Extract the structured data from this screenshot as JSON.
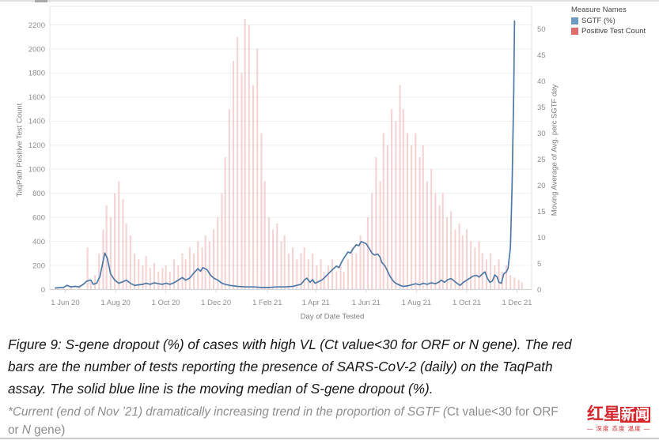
{
  "chart_data": {
    "type": "combo",
    "title": "",
    "x_axis_title": "Day of Date Tested",
    "x_unit": "day index (0 = first plotted day, ~20 May 2020)",
    "x_ticks": [
      {
        "label": "1 Jun 20",
        "day": 12
      },
      {
        "label": "1 Aug 20",
        "day": 73
      },
      {
        "label": "1 Oct 20",
        "day": 134
      },
      {
        "label": "1 Dec 20",
        "day": 195
      },
      {
        "label": "1 Feb 21",
        "day": 257
      },
      {
        "label": "1 Apr 21",
        "day": 316
      },
      {
        "label": "1 Jun 21",
        "day": 377
      },
      {
        "label": "1 Aug 21",
        "day": 438
      },
      {
        "label": "1 Oct 21",
        "day": 499
      },
      {
        "label": "1 Dec 21",
        "day": 560
      }
    ],
    "x_domain": [
      -8,
      578
    ],
    "left_axis": {
      "title": "TaqPath Positive Test Count",
      "ticks": [
        0,
        200,
        400,
        600,
        800,
        1000,
        1200,
        1400,
        1600,
        1800,
        2000,
        2200
      ],
      "lim": [
        0,
        2360
      ]
    },
    "right_axis": {
      "title": "Moving Average of Avg. perc SGTF day",
      "ticks": [
        0,
        5,
        10,
        15,
        20,
        25,
        30,
        35,
        40,
        45,
        50
      ],
      "lim": [
        0,
        54
      ]
    },
    "grid": true,
    "legend": {
      "title": "Measure Names",
      "position": "top-right",
      "items": [
        {
          "label": "SGTF (%)",
          "color": "#6d9ac2"
        },
        {
          "label": "Positive Test Count",
          "color": "#e06c6c"
        }
      ]
    },
    "series": [
      {
        "name": "Positive Test Count",
        "type": "bar",
        "axis": "left",
        "color": "#e06c6c",
        "opacity": 0.3,
        "points": [
          [
            0,
            10
          ],
          [
            10,
            20
          ],
          [
            19,
            25
          ],
          [
            29,
            40
          ],
          [
            39,
            350
          ],
          [
            43,
            60
          ],
          [
            48,
            120
          ],
          [
            53,
            300
          ],
          [
            58,
            500
          ],
          [
            62,
            700
          ],
          [
            67,
            600
          ],
          [
            72,
            800
          ],
          [
            77,
            900
          ],
          [
            82,
            750
          ],
          [
            86,
            550
          ],
          [
            91,
            450
          ],
          [
            96,
            300
          ],
          [
            101,
            250
          ],
          [
            106,
            200
          ],
          [
            110,
            280
          ],
          [
            115,
            180
          ],
          [
            120,
            220
          ],
          [
            125,
            150
          ],
          [
            130,
            180
          ],
          [
            134,
            200
          ],
          [
            139,
            150
          ],
          [
            144,
            250
          ],
          [
            149,
            200
          ],
          [
            154,
            300
          ],
          [
            158,
            250
          ],
          [
            163,
            350
          ],
          [
            168,
            300
          ],
          [
            173,
            400
          ],
          [
            178,
            350
          ],
          [
            182,
            450
          ],
          [
            187,
            400
          ],
          [
            192,
            500
          ],
          [
            197,
            600
          ],
          [
            202,
            800
          ],
          [
            206,
            1100
          ],
          [
            211,
            1500
          ],
          [
            216,
            1900
          ],
          [
            221,
            2100
          ],
          [
            226,
            1800
          ],
          [
            230,
            2250
          ],
          [
            235,
            2200
          ],
          [
            240,
            1700
          ],
          [
            245,
            2000
          ],
          [
            250,
            1300
          ],
          [
            254,
            900
          ],
          [
            259,
            600
          ],
          [
            264,
            500
          ],
          [
            269,
            550
          ],
          [
            274,
            400
          ],
          [
            278,
            450
          ],
          [
            283,
            300
          ],
          [
            288,
            350
          ],
          [
            293,
            250
          ],
          [
            298,
            300
          ],
          [
            302,
            350
          ],
          [
            307,
            250
          ],
          [
            312,
            300
          ],
          [
            317,
            200
          ],
          [
            322,
            250
          ],
          [
            326,
            150
          ],
          [
            331,
            200
          ],
          [
            336,
            250
          ],
          [
            341,
            150
          ],
          [
            346,
            200
          ],
          [
            350,
            150
          ],
          [
            355,
            250
          ],
          [
            360,
            350
          ],
          [
            365,
            300
          ],
          [
            370,
            450
          ],
          [
            374,
            400
          ],
          [
            379,
            600
          ],
          [
            384,
            800
          ],
          [
            389,
            1100
          ],
          [
            394,
            900
          ],
          [
            398,
            1300
          ],
          [
            403,
            1200
          ],
          [
            408,
            1500
          ],
          [
            413,
            1400
          ],
          [
            418,
            1700
          ],
          [
            422,
            1500
          ],
          [
            427,
            1300
          ],
          [
            432,
            1200
          ],
          [
            437,
            1300
          ],
          [
            442,
            1100
          ],
          [
            446,
            1200
          ],
          [
            451,
            900
          ],
          [
            456,
            1000
          ],
          [
            461,
            800
          ],
          [
            466,
            700
          ],
          [
            470,
            800
          ],
          [
            475,
            600
          ],
          [
            480,
            650
          ],
          [
            485,
            500
          ],
          [
            490,
            550
          ],
          [
            494,
            450
          ],
          [
            499,
            500
          ],
          [
            504,
            400
          ],
          [
            509,
            350
          ],
          [
            514,
            400
          ],
          [
            518,
            300
          ],
          [
            523,
            250
          ],
          [
            528,
            300
          ],
          [
            533,
            200
          ],
          [
            538,
            250
          ],
          [
            542,
            150
          ],
          [
            547,
            200
          ],
          [
            552,
            120
          ],
          [
            557,
            100
          ],
          [
            562,
            80
          ],
          [
            566,
            60
          ]
        ]
      },
      {
        "name": "SGTF (%)",
        "type": "line",
        "axis": "right",
        "color": "#4e79a7",
        "width": 1.7,
        "points": [
          [
            0,
            0.3
          ],
          [
            10,
            0.4
          ],
          [
            14,
            0.8
          ],
          [
            19,
            0.5
          ],
          [
            24,
            0.6
          ],
          [
            29,
            0.5
          ],
          [
            34,
            1.0
          ],
          [
            38,
            1.6
          ],
          [
            43,
            1.8
          ],
          [
            46,
            1.0
          ],
          [
            50,
            1.2
          ],
          [
            54,
            2.5
          ],
          [
            58,
            5.5
          ],
          [
            60,
            7.0
          ],
          [
            63,
            6.0
          ],
          [
            67,
            3.0
          ],
          [
            72,
            1.8
          ],
          [
            77,
            1.2
          ],
          [
            82,
            1.5
          ],
          [
            86,
            1.8
          ],
          [
            91,
            1.2
          ],
          [
            96,
            0.8
          ],
          [
            101,
            0.9
          ],
          [
            106,
            1.0
          ],
          [
            110,
            1.2
          ],
          [
            115,
            1.0
          ],
          [
            120,
            1.3
          ],
          [
            125,
            1.1
          ],
          [
            130,
            1.0
          ],
          [
            134,
            1.2
          ],
          [
            139,
            1.0
          ],
          [
            144,
            1.3
          ],
          [
            149,
            1.8
          ],
          [
            154,
            2.3
          ],
          [
            158,
            1.8
          ],
          [
            163,
            2.2
          ],
          [
            168,
            3.2
          ],
          [
            173,
            4.0
          ],
          [
            176,
            3.5
          ],
          [
            179,
            4.2
          ],
          [
            184,
            3.8
          ],
          [
            188,
            2.8
          ],
          [
            192,
            2.2
          ],
          [
            197,
            1.8
          ],
          [
            202,
            1.2
          ],
          [
            206,
            1.0
          ],
          [
            211,
            0.8
          ],
          [
            216,
            0.7
          ],
          [
            221,
            0.6
          ],
          [
            230,
            0.5
          ],
          [
            240,
            0.5
          ],
          [
            250,
            0.4
          ],
          [
            259,
            0.4
          ],
          [
            269,
            0.5
          ],
          [
            278,
            0.5
          ],
          [
            288,
            0.6
          ],
          [
            293,
            0.8
          ],
          [
            298,
            1.0
          ],
          [
            302,
            1.8
          ],
          [
            305,
            2.2
          ],
          [
            309,
            1.4
          ],
          [
            312,
            1.9
          ],
          [
            315,
            1.2
          ],
          [
            319,
            1.5
          ],
          [
            323,
            1.8
          ],
          [
            326,
            2.2
          ],
          [
            331,
            3.0
          ],
          [
            336,
            3.8
          ],
          [
            341,
            4.5
          ],
          [
            344,
            4.2
          ],
          [
            348,
            5.5
          ],
          [
            352,
            6.5
          ],
          [
            355,
            7.2
          ],
          [
            358,
            7.0
          ],
          [
            362,
            8.0
          ],
          [
            365,
            8.6
          ],
          [
            368,
            8.4
          ],
          [
            371,
            9.2
          ],
          [
            374,
            9.0
          ],
          [
            377,
            8.8
          ],
          [
            381,
            7.8
          ],
          [
            384,
            7.0
          ],
          [
            387,
            6.6
          ],
          [
            391,
            6.8
          ],
          [
            394,
            6.2
          ],
          [
            396,
            5.2
          ],
          [
            400,
            4.5
          ],
          [
            403,
            3.5
          ],
          [
            406,
            2.5
          ],
          [
            410,
            1.6
          ],
          [
            413,
            1.2
          ],
          [
            418,
            0.8
          ],
          [
            422,
            0.6
          ],
          [
            427,
            0.7
          ],
          [
            432,
            0.9
          ],
          [
            437,
            1.1
          ],
          [
            442,
            0.9
          ],
          [
            446,
            1.2
          ],
          [
            451,
            1.0
          ],
          [
            456,
            1.3
          ],
          [
            461,
            1.1
          ],
          [
            466,
            1.5
          ],
          [
            468,
            1.8
          ],
          [
            472,
            1.4
          ],
          [
            476,
            1.9
          ],
          [
            480,
            2.1
          ],
          [
            484,
            1.6
          ],
          [
            488,
            1.1
          ],
          [
            491,
            0.8
          ],
          [
            495,
            1.4
          ],
          [
            499,
            1.8
          ],
          [
            503,
            2.2
          ],
          [
            507,
            2.6
          ],
          [
            511,
            2.7
          ],
          [
            514,
            2.4
          ],
          [
            518,
            3.0
          ],
          [
            521,
            3.4
          ],
          [
            524,
            2.2
          ],
          [
            527,
            1.4
          ],
          [
            530,
            1.6
          ],
          [
            533,
            2.8
          ],
          [
            536,
            2.4
          ],
          [
            538,
            1.4
          ],
          [
            541,
            1.2
          ],
          [
            544,
            3.0
          ],
          [
            547,
            3.4
          ],
          [
            549,
            4.0
          ],
          [
            552,
            8.0
          ],
          [
            554,
            20.0
          ],
          [
            556,
            38.0
          ],
          [
            557,
            51.5
          ]
        ]
      }
    ]
  },
  "caption": {
    "lines": [
      "Figure 9: S-gene dropout (%) of cases with high VL (Ct value<30 for ORF or N gene). The red",
      "bars are the number of tests reporting the presence of SARS-CoV-2 (daily) on the TaqPath",
      "assay. The solid blue line is the moving median of S-gene dropout (%)."
    ]
  },
  "footnote": {
    "line1_italic": "*Current (end of Nov ’21) dramatically increasing trend in the proportion of SGTF (",
    "line1_normal": "Ct value<30 for ORF",
    "line2_normal_pre": "or ",
    "line2_italic": "N",
    "line2_normal_post": " gene)"
  },
  "watermark": {
    "brand_part1": "红星",
    "brand_part2": "新闻",
    "tagline": "— 深度 态度 温度 —"
  }
}
